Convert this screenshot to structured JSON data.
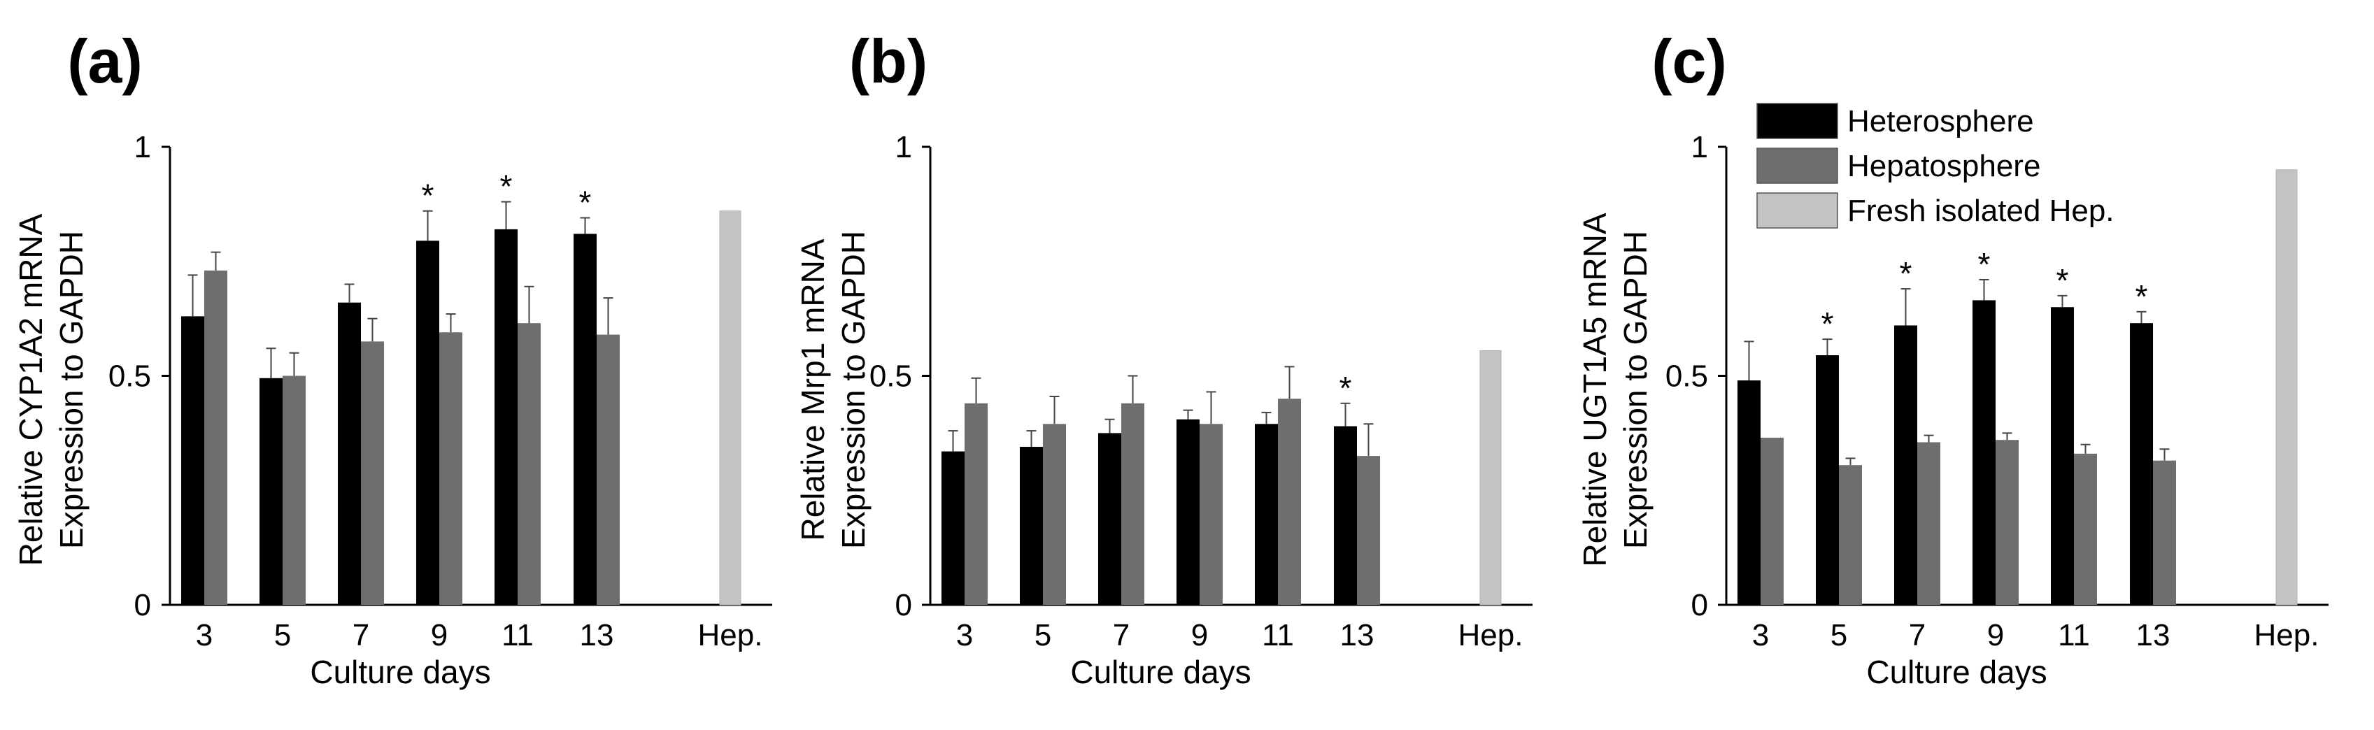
{
  "colors": {
    "heterosphere": "#000000",
    "hepatosphere": "#6e6e6e",
    "fresh": "#c3c3c3",
    "axis": "#000000"
  },
  "legend": {
    "placement": "top-right of panel (c)",
    "items": [
      {
        "label": "Heterosphere",
        "color": "#000000"
      },
      {
        "label": "Hepatosphere",
        "color": "#6e6e6e"
      },
      {
        "label": "Fresh isolated Hep.",
        "color": "#c3c3c3"
      }
    ]
  },
  "chart_data": [
    {
      "type": "bar",
      "panel": "(a)",
      "xlabel": "Culture days",
      "ylabel_line1": "Relative CYP1A2 mRNA",
      "ylabel_line2": "Expression to GAPDH",
      "ylim": [
        0,
        1
      ],
      "yticks": [
        "0",
        "0.5",
        "1"
      ],
      "categories": [
        "3",
        "5",
        "7",
        "9",
        "11",
        "13"
      ],
      "series": [
        {
          "name": "Heterosphere",
          "values": [
            0.63,
            0.495,
            0.66,
            0.795,
            0.82,
            0.81
          ],
          "errors": [
            0.09,
            0.065,
            0.04,
            0.065,
            0.06,
            0.035
          ]
        },
        {
          "name": "Hepatosphere",
          "values": [
            0.73,
            0.5,
            0.575,
            0.595,
            0.615,
            0.59
          ],
          "errors": [
            0.04,
            0.05,
            0.05,
            0.04,
            0.08,
            0.08
          ]
        }
      ],
      "significant": [
        false,
        false,
        false,
        true,
        true,
        true
      ],
      "hep_label": "Hep.",
      "hep_value": 0.86,
      "star_symbol": "*"
    },
    {
      "type": "bar",
      "panel": "(b)",
      "xlabel": "Culture days",
      "ylabel_line1": "Relative Mrp1 mRNA",
      "ylabel_line2": "Expression to GAPDH",
      "ylim": [
        0,
        1
      ],
      "yticks": [
        "0",
        "0.5",
        "1"
      ],
      "categories": [
        "3",
        "5",
        "7",
        "9",
        "11",
        "13"
      ],
      "series": [
        {
          "name": "Heterosphere",
          "values": [
            0.335,
            0.345,
            0.375,
            0.405,
            0.395,
            0.39
          ],
          "errors": [
            0.045,
            0.035,
            0.03,
            0.02,
            0.025,
            0.05
          ]
        },
        {
          "name": "Hepatosphere",
          "values": [
            0.44,
            0.395,
            0.44,
            0.395,
            0.45,
            0.325
          ],
          "errors": [
            0.055,
            0.06,
            0.06,
            0.07,
            0.07,
            0.07
          ]
        }
      ],
      "significant": [
        false,
        false,
        false,
        false,
        false,
        true
      ],
      "hep_label": "Hep.",
      "hep_value": 0.555,
      "star_symbol": "*"
    },
    {
      "type": "bar",
      "panel": "(c)",
      "xlabel": "Culture days",
      "ylabel_line1": "Relative UGT1A5 mRNA",
      "ylabel_line2": "Expression to GAPDH",
      "ylim": [
        0,
        1
      ],
      "yticks": [
        "0",
        "0.5",
        "1"
      ],
      "categories": [
        "3",
        "5",
        "7",
        "9",
        "11",
        "13"
      ],
      "series": [
        {
          "name": "Heterosphere",
          "values": [
            0.49,
            0.545,
            0.61,
            0.665,
            0.65,
            0.615
          ],
          "errors": [
            0.085,
            0.035,
            0.08,
            0.045,
            0.025,
            0.025
          ]
        },
        {
          "name": "Hepatosphere",
          "values": [
            0.365,
            0.305,
            0.355,
            0.36,
            0.33,
            0.315
          ],
          "errors": [
            0.0,
            0.015,
            0.015,
            0.015,
            0.02,
            0.025
          ]
        }
      ],
      "significant": [
        false,
        true,
        true,
        true,
        true,
        true
      ],
      "hep_label": "Hep.",
      "hep_value": 0.95,
      "star_symbol": "*"
    }
  ]
}
